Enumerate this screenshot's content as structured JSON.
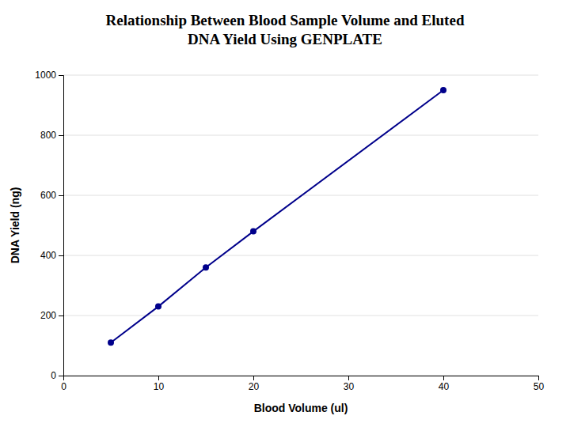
{
  "chart_data": {
    "type": "line",
    "title": [
      "Relationship Between Blood Sample Volume and Eluted",
      "DNA Yield Using GENPLATE"
    ],
    "xlabel": "Blood Volume (ul)",
    "ylabel": "DNA Yield (ng)",
    "x": [
      5,
      10,
      15,
      20,
      40
    ],
    "values": [
      110,
      230,
      360,
      480,
      950
    ],
    "color": "#00008B",
    "marker": "circle",
    "xlim": [
      0,
      50
    ],
    "ylim": [
      0,
      1000
    ],
    "xticks": [
      0,
      10,
      20,
      30,
      40,
      50
    ],
    "yticks": [
      0,
      200,
      400,
      600,
      800,
      1000
    ],
    "grid": "y"
  }
}
